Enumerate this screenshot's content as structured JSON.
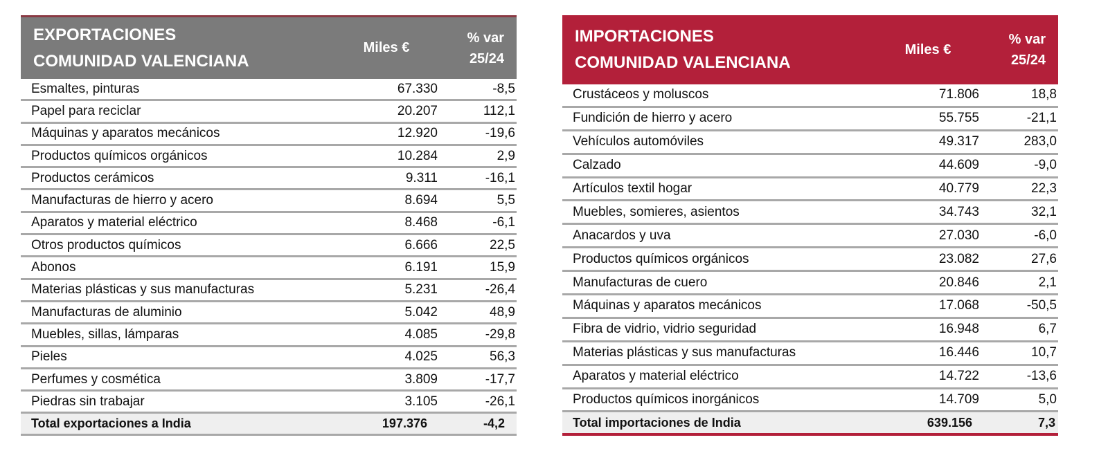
{
  "exports": {
    "title_line1": "EXPORTACIONES",
    "title_line2": "COMUNIDAD  VALENCIANA",
    "col_amount": "Miles €",
    "col_var_line1": "% var",
    "col_var_line2": "25/24",
    "header_color": "#7b7b7b",
    "rows": [
      {
        "name": "Esmaltes, pinturas",
        "amount": "67.330",
        "var": "-8,5"
      },
      {
        "name": "Papel para reciclar",
        "amount": "20.207",
        "var": "112,1"
      },
      {
        "name": "Máquinas y aparatos mecánicos",
        "amount": "12.920",
        "var": "-19,6"
      },
      {
        "name": "Productos químicos orgánicos",
        "amount": "10.284",
        "var": "2,9"
      },
      {
        "name": "Productos cerámicos",
        "amount": "9.311",
        "var": "-16,1"
      },
      {
        "name": "Manufacturas de hierro y acero",
        "amount": "8.694",
        "var": "5,5"
      },
      {
        "name": "Aparatos y material eléctrico",
        "amount": "8.468",
        "var": "-6,1"
      },
      {
        "name": "Otros productos químicos",
        "amount": "6.666",
        "var": "22,5"
      },
      {
        "name": "Abonos",
        "amount": "6.191",
        "var": "15,9"
      },
      {
        "name": "Materias plásticas y sus manufacturas",
        "amount": "5.231",
        "var": "-26,4"
      },
      {
        "name": "Manufacturas de aluminio",
        "amount": "5.042",
        "var": "48,9"
      },
      {
        "name": "Muebles, sillas, lámparas",
        "amount": "4.085",
        "var": "-29,8"
      },
      {
        "name": "Pieles",
        "amount": "4.025",
        "var": "56,3"
      },
      {
        "name": "Perfumes y cosmética",
        "amount": "3.809",
        "var": "-17,7"
      },
      {
        "name": "Piedras sin trabajar",
        "amount": "3.105",
        "var": "-26,1"
      }
    ],
    "total": {
      "name": "Total exportaciones a  India",
      "amount": "197.376",
      "var": "-4,2"
    }
  },
  "imports": {
    "title_line1": "IMPORTACIONES",
    "title_line2": "COMUNIDAD VALENCIANA",
    "col_amount": "Miles €",
    "col_var_line1": "% var",
    "col_var_line2": "25/24",
    "header_color": "#b3203a",
    "rows": [
      {
        "name": "Crustáceos y moluscos",
        "amount": "71.806",
        "var": "18,8"
      },
      {
        "name": "Fundición de hierro y acero",
        "amount": "55.755",
        "var": "-21,1"
      },
      {
        "name": "Vehículos automóviles",
        "amount": "49.317",
        "var": "283,0"
      },
      {
        "name": "Calzado",
        "amount": "44.609",
        "var": "-9,0"
      },
      {
        "name": "Artículos textil hogar",
        "amount": "40.779",
        "var": "22,3"
      },
      {
        "name": "Muebles, somieres, asientos",
        "amount": "34.743",
        "var": "32,1"
      },
      {
        "name": "Anacardos y uva",
        "amount": "27.030",
        "var": "-6,0"
      },
      {
        "name": "Productos químicos orgánicos",
        "amount": "23.082",
        "var": "27,6"
      },
      {
        "name": "Manufacturas de cuero",
        "amount": "20.846",
        "var": "2,1"
      },
      {
        "name": "Máquinas y aparatos mecánicos",
        "amount": "17.068",
        "var": "-50,5"
      },
      {
        "name": "Fibra de vidrio, vidrio seguridad",
        "amount": "16.948",
        "var": "6,7"
      },
      {
        "name": "Materias plásticas y sus manufacturas",
        "amount": "16.446",
        "var": "10,7"
      },
      {
        "name": "Aparatos y material eléctrico",
        "amount": "14.722",
        "var": "-13,6"
      },
      {
        "name": "Productos químicos inorgánicos",
        "amount": "14.709",
        "var": "5,0"
      }
    ],
    "total": {
      "name": "Total importaciones de India",
      "amount": "639.156",
      "var": "7,3"
    }
  }
}
